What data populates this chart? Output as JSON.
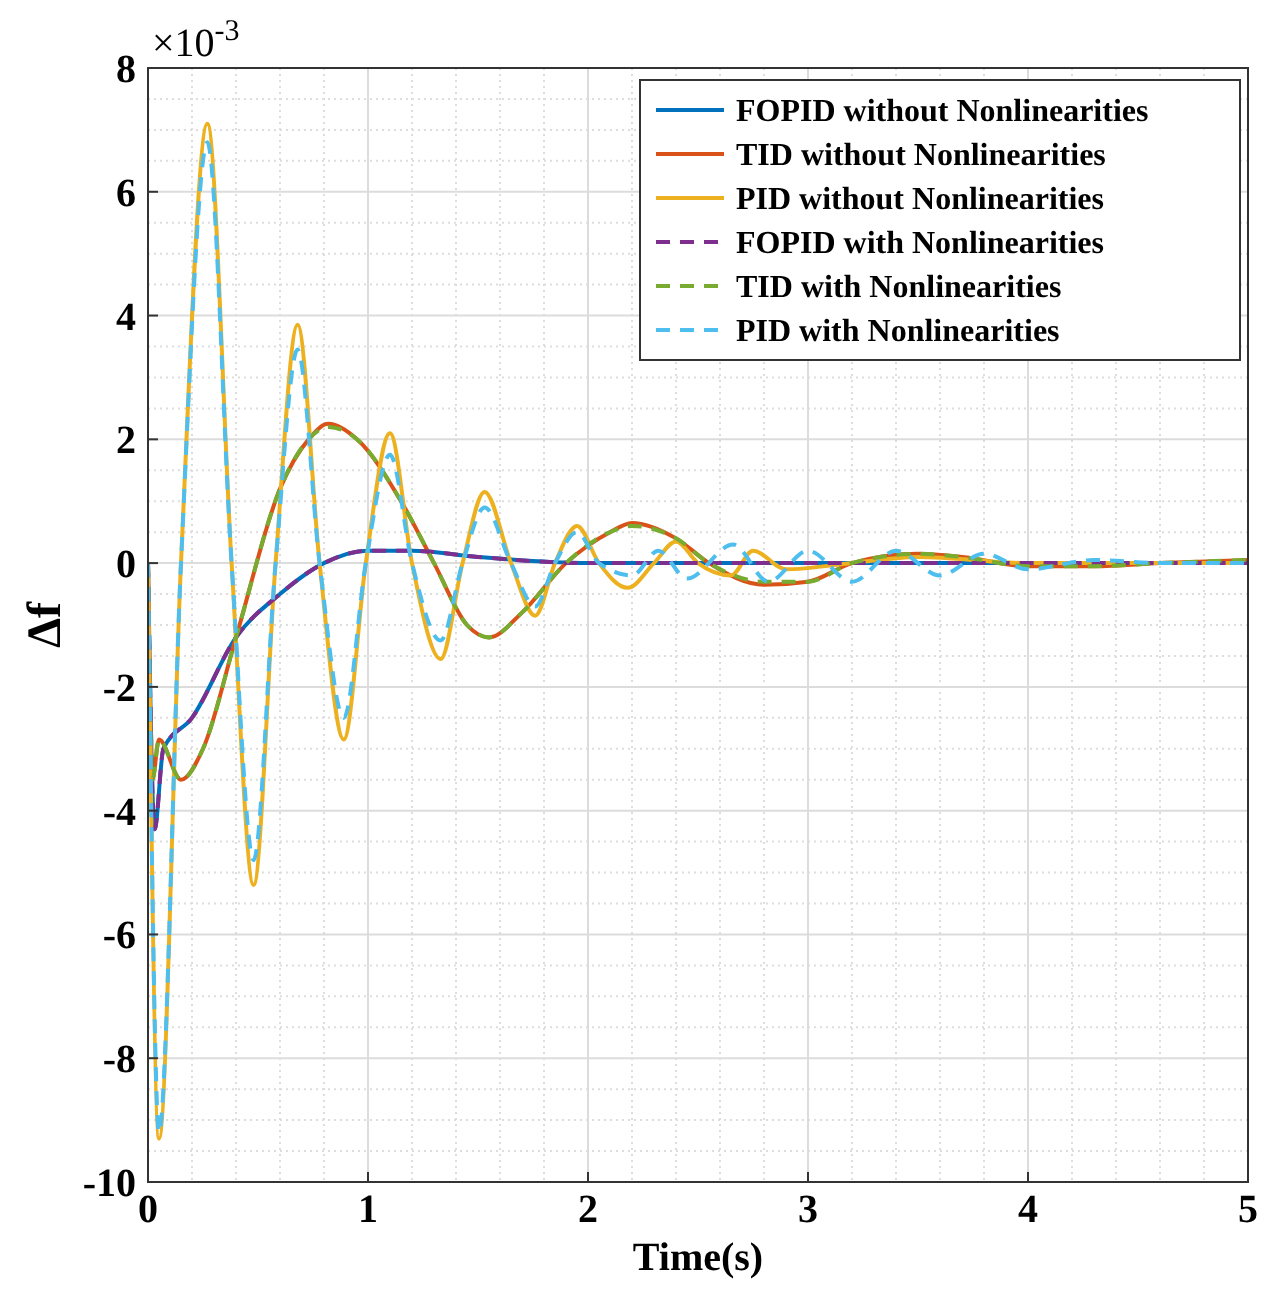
{
  "chart_data": {
    "type": "line",
    "xlabel": "Time(s)",
    "ylabel": "Δf",
    "annotations": [
      "×10$^{-3}$"
    ],
    "xlim": [
      0,
      5
    ],
    "xticks": [
      0,
      1,
      2,
      3,
      4,
      5
    ],
    "ylim": [
      -10,
      8
    ],
    "yticks": [
      -10,
      -8,
      -6,
      -4,
      -2,
      0,
      2,
      4,
      6,
      8
    ],
    "grid": true,
    "legend": "top right",
    "series": [
      {
        "name": "FOPID without Nonlinearities",
        "color": "#0072bd",
        "line_style": "solid",
        "x": [
          0,
          0.03,
          0.07,
          0.2,
          0.4,
          0.6,
          0.8,
          1.0,
          1.2,
          1.5,
          2.0,
          2.5,
          3.0,
          4.0,
          5.0
        ],
        "values": [
          0,
          -4.3,
          -3,
          -2.5,
          -1.2,
          -0.5,
          0,
          0.2,
          0.2,
          0.1,
          0,
          0,
          0,
          0,
          0
        ]
      },
      {
        "name": "TID without Nonlinearities",
        "color": "#d95319",
        "line_style": "solid",
        "x": [
          0,
          0.02,
          0.05,
          0.15,
          0.25,
          0.4,
          0.6,
          0.73,
          0.82,
          0.95,
          1.15,
          1.3,
          1.45,
          1.55,
          1.7,
          1.9,
          2.1,
          2.2,
          2.4,
          2.55,
          2.8,
          3.0,
          3.2,
          3.5,
          3.7,
          4.0,
          4.3,
          4.6,
          5.0
        ],
        "values": [
          0,
          -3.5,
          -2.85,
          -3.5,
          -3,
          -1.2,
          1.2,
          2,
          2.25,
          2,
          1,
          0,
          -1,
          -1.2,
          -0.8,
          0,
          0.5,
          0.65,
          0.4,
          0,
          -0.35,
          -0.3,
          0,
          0.15,
          0.1,
          -0.05,
          -0.05,
          0,
          0.05
        ]
      },
      {
        "name": "PID without Nonlinearities",
        "color": "#edb120",
        "line_style": "solid",
        "x": [
          0,
          0.05,
          0.15,
          0.27,
          0.38,
          0.48,
          0.58,
          0.68,
          0.78,
          0.89,
          0.99,
          1.1,
          1.2,
          1.33,
          1.43,
          1.53,
          1.65,
          1.76,
          1.85,
          1.95,
          2.05,
          2.18,
          2.3,
          2.4,
          2.5,
          2.65,
          2.75,
          2.9,
          3.2,
          3.5,
          4.0,
          4.5,
          5.0
        ],
        "values": [
          0,
          -9.3,
          0,
          7.1,
          0,
          -5.2,
          0,
          3.85,
          0,
          -2.85,
          0,
          2.1,
          0,
          -1.55,
          0,
          1.15,
          0,
          -0.85,
          0,
          0.6,
          0,
          -0.4,
          0,
          0.35,
          0,
          -0.2,
          0.2,
          -0.1,
          0,
          0.1,
          0,
          0,
          0
        ]
      },
      {
        "name": "FOPID with Nonlinearities",
        "color": "#7e2f8e",
        "line_style": "dashed",
        "x": [
          0,
          0.03,
          0.07,
          0.2,
          0.4,
          0.6,
          0.8,
          1.0,
          1.2,
          1.5,
          2.0,
          2.5,
          3.0,
          4.0,
          5.0
        ],
        "values": [
          0,
          -4.3,
          -3,
          -2.5,
          -1.2,
          -0.5,
          0,
          0.2,
          0.2,
          0.1,
          0,
          0,
          0,
          0,
          0
        ]
      },
      {
        "name": "TID with Nonlinearities",
        "color": "#77ac30",
        "line_style": "dashed",
        "x": [
          0,
          0.02,
          0.05,
          0.15,
          0.25,
          0.4,
          0.6,
          0.73,
          0.82,
          0.95,
          1.15,
          1.3,
          1.45,
          1.55,
          1.7,
          1.9,
          2.1,
          2.2,
          2.4,
          2.55,
          2.8,
          3.0,
          3.2,
          3.5,
          3.7,
          4.0,
          4.3,
          4.6,
          5.0
        ],
        "values": [
          0,
          -3.5,
          -2.85,
          -3.5,
          -3,
          -1.2,
          1.2,
          2,
          2.2,
          2,
          1,
          0,
          -1,
          -1.2,
          -0.8,
          0,
          0.5,
          0.6,
          0.4,
          0,
          -0.3,
          -0.3,
          0,
          0.15,
          0.1,
          -0.05,
          -0.05,
          0,
          0.05
        ]
      },
      {
        "name": "PID with Nonlinearities",
        "color": "#4dbeee",
        "line_style": "dashed",
        "x": [
          0,
          0.05,
          0.15,
          0.27,
          0.38,
          0.48,
          0.58,
          0.68,
          0.78,
          0.89,
          0.99,
          1.1,
          1.2,
          1.33,
          1.43,
          1.53,
          1.65,
          1.76,
          1.85,
          1.95,
          2.05,
          2.2,
          2.32,
          2.45,
          2.66,
          2.82,
          3.0,
          3.2,
          3.4,
          3.6,
          3.8,
          4.0,
          4.3,
          4.6,
          5.0
        ],
        "values": [
          0,
          -9.2,
          0,
          6.8,
          0,
          -4.8,
          0,
          3.45,
          0,
          -2.5,
          0,
          1.75,
          0,
          -1.25,
          0,
          0.9,
          0,
          -0.7,
          0,
          0.5,
          0,
          -0.2,
          0.2,
          -0.25,
          0.3,
          -0.3,
          0.2,
          -0.3,
          0.2,
          -0.2,
          0.15,
          -0.1,
          0.05,
          0,
          0
        ]
      }
    ]
  }
}
